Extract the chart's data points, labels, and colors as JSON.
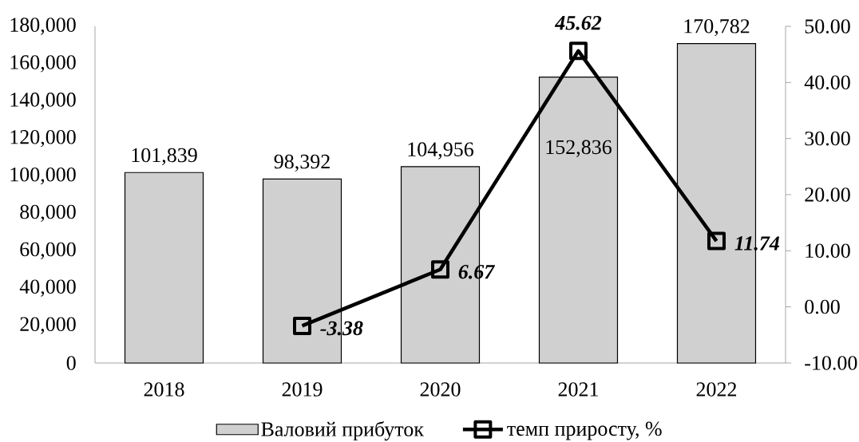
{
  "chart_data": {
    "type": "bar",
    "categories": [
      "2018",
      "2019",
      "2020",
      "2021",
      "2022"
    ],
    "series": [
      {
        "name": "Валовий прибуток",
        "color": "#d0d0d0",
        "values": [
          101839,
          98392,
          104956,
          152836,
          170782
        ],
        "value_labels": [
          "101,839",
          "98,392",
          "104,956",
          "152,836",
          "170,782"
        ]
      },
      {
        "name": "темп приросту, %",
        "type": "line",
        "axis": "y2",
        "color": "#000000",
        "marker": "square",
        "values": [
          null,
          -3.38,
          6.67,
          45.62,
          11.74
        ],
        "value_labels": [
          null,
          "-3.38",
          "6.67",
          "45.62",
          "11.74"
        ]
      }
    ],
    "ylim": [
      0,
      180000
    ],
    "yticks": [
      0,
      {
        "value": 20000,
        "label": "20,000"
      },
      {
        "value": 40000,
        "label": "40,000"
      },
      {
        "value": 60000,
        "label": "60,000"
      },
      {
        "value": 80000,
        "label": "80,000"
      },
      {
        "value": 100000,
        "label": "100,000"
      },
      {
        "value": 120000,
        "label": "120,000"
      },
      {
        "value": 140000,
        "label": "140,000"
      },
      {
        "value": 160000,
        "label": "160,000"
      },
      {
        "value": 180000,
        "label": "180,000"
      }
    ],
    "y2lim": [
      -10,
      50
    ],
    "y2ticks": [
      {
        "value": -10,
        "label": "-10.00"
      },
      {
        "value": 0,
        "label": "0.00"
      },
      {
        "value": 10,
        "label": "10.00"
      },
      {
        "value": 20,
        "label": "20.00"
      },
      {
        "value": 30,
        "label": "30.00"
      },
      {
        "value": 40,
        "label": "40.00"
      },
      {
        "value": 50,
        "label": "50.00"
      }
    ],
    "legend": "bottom"
  }
}
